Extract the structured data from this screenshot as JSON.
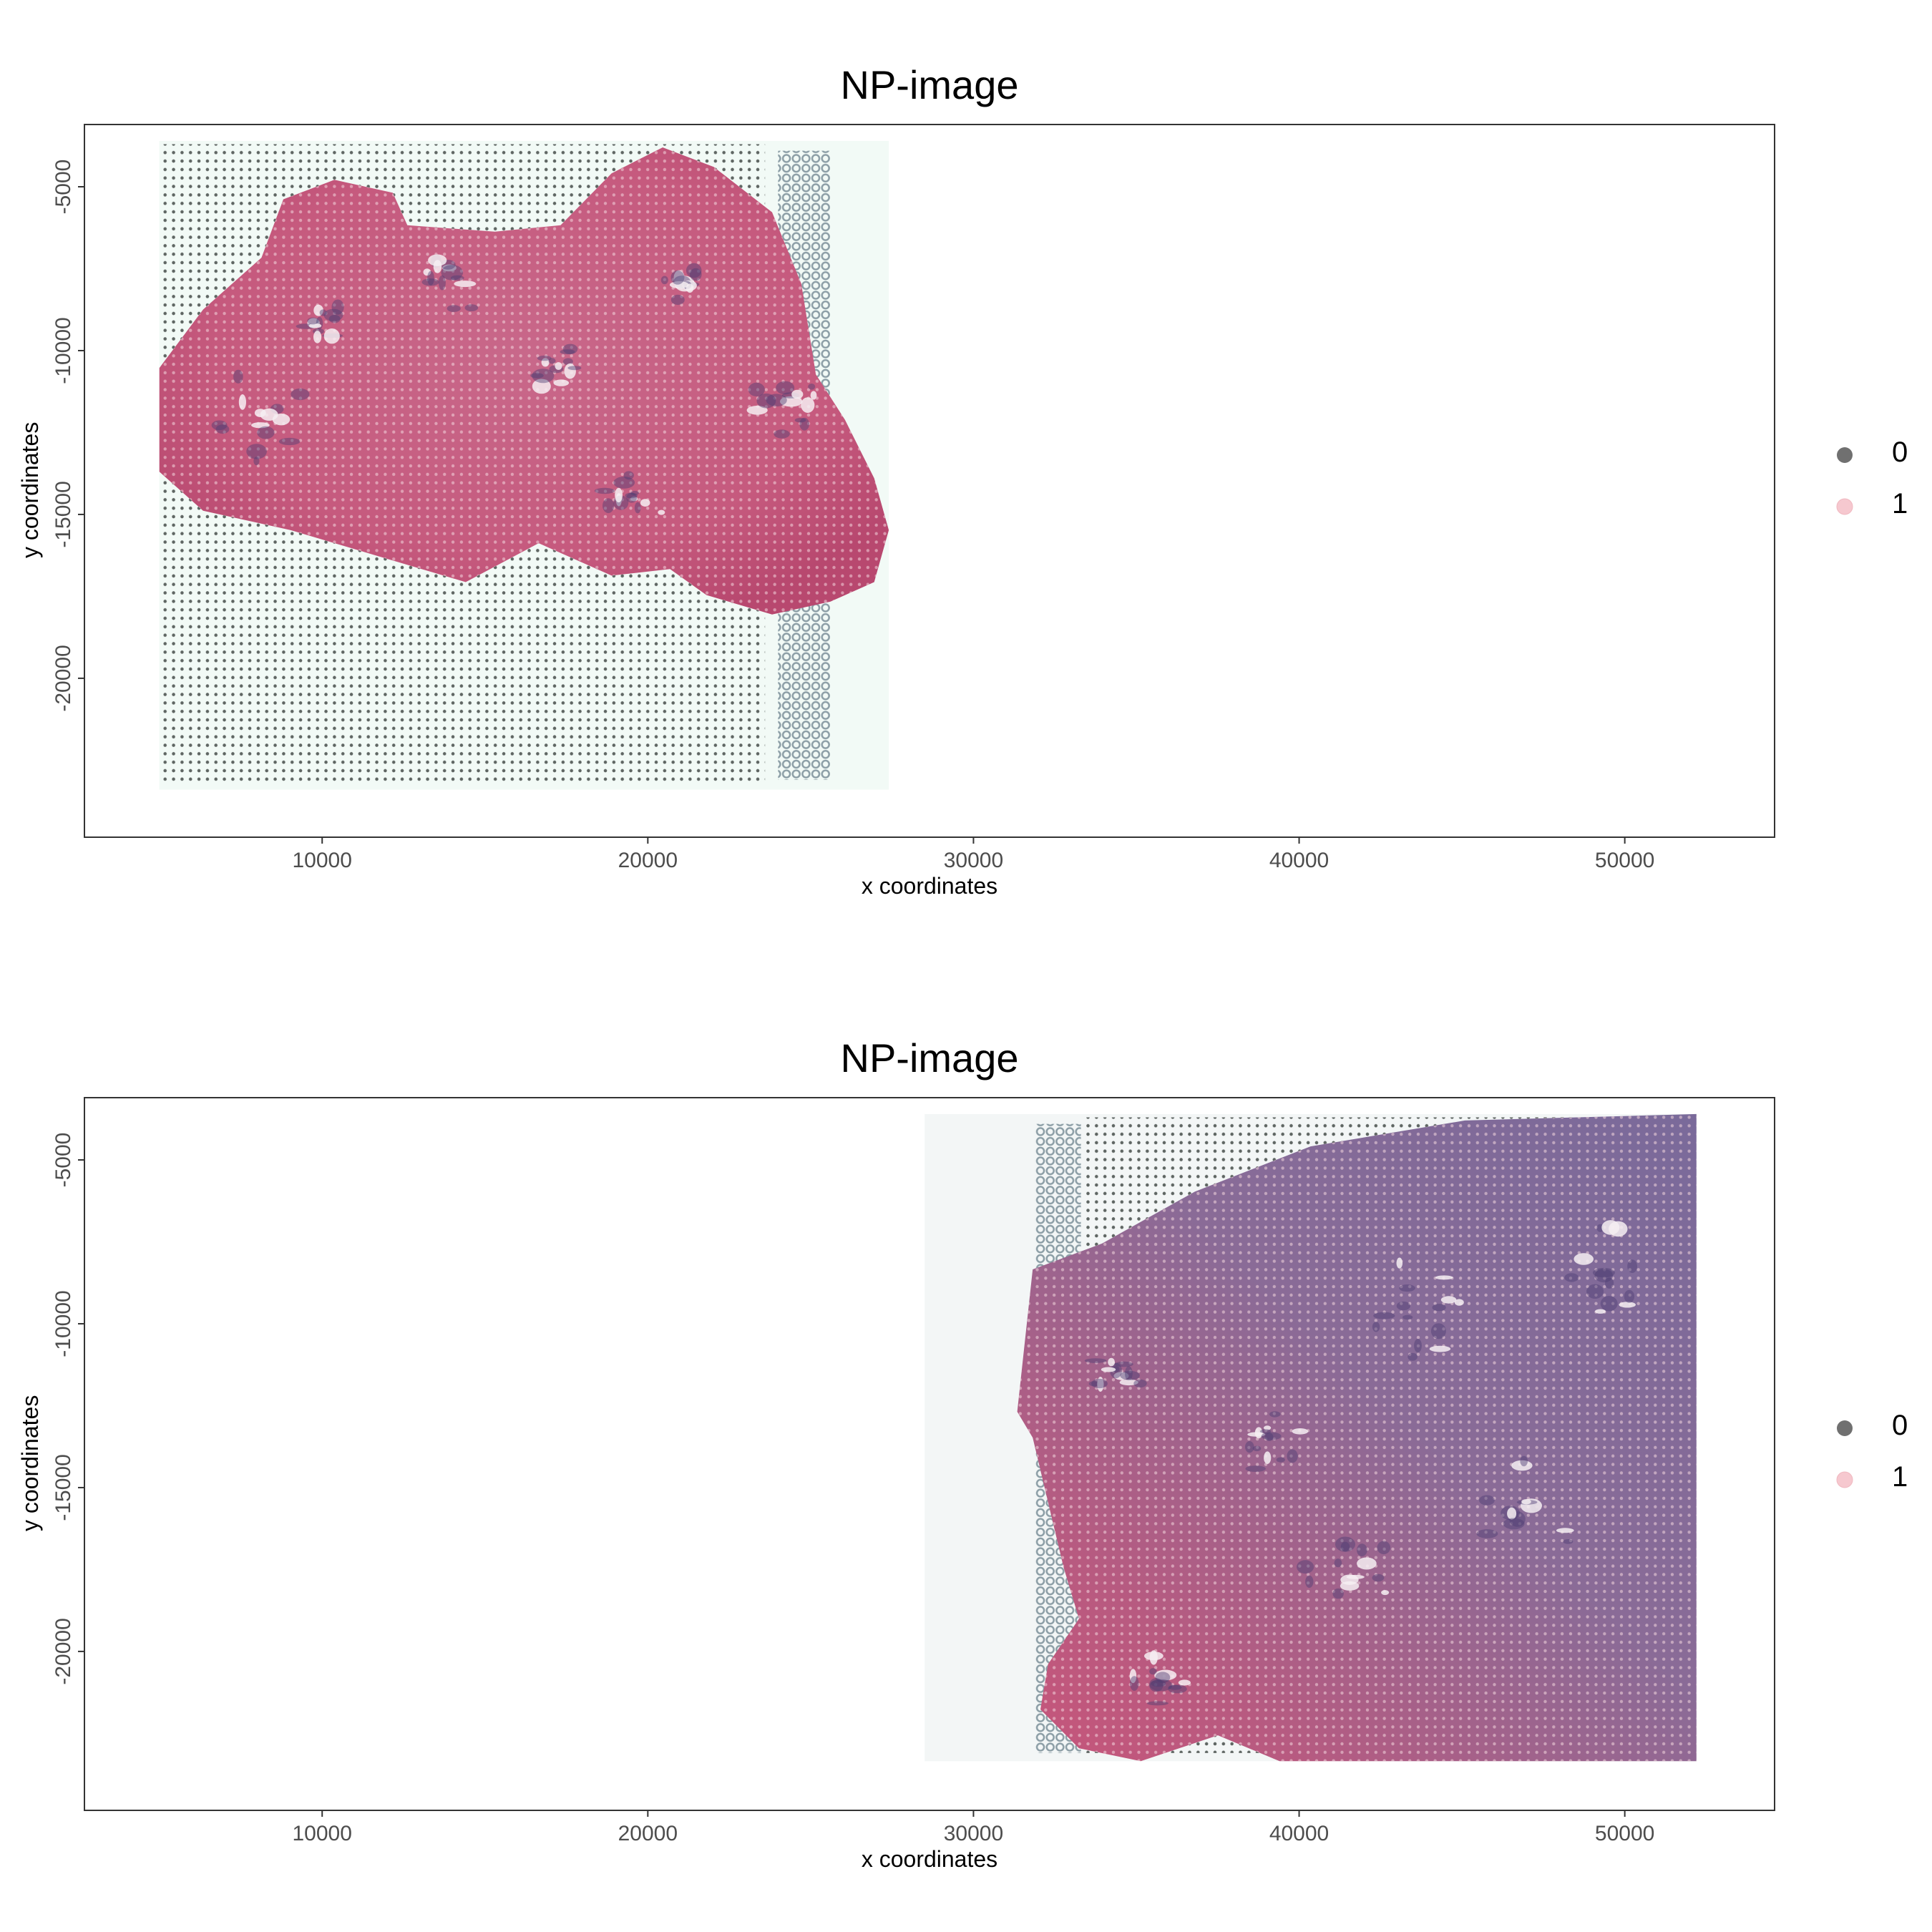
{
  "chart_data": [
    {
      "type": "scatter",
      "title": "NP-image",
      "xlabel": "x coordinates",
      "ylabel": "y coordinates",
      "xlim": [
        2700,
        54600
      ],
      "ylim": [
        -24850,
        -3100
      ],
      "x_ticks": [
        10000,
        20000,
        30000,
        40000,
        50000
      ],
      "y_ticks": [
        -5000,
        -10000,
        -15000,
        -20000
      ],
      "x_tick_labels": [
        "10000",
        "20000",
        "30000",
        "40000",
        "50000"
      ],
      "y_tick_labels": [
        "-5000",
        "-10000",
        "-15000",
        "-20000"
      ],
      "background_image": {
        "description_extent": {
          "xmin": 5000,
          "xmax": 27400,
          "ymin": -23400,
          "ymax": -3600
        }
      },
      "spot_grid": {
        "x_range": [
          5100,
          23600
        ],
        "y_range": [
          -23200,
          -3700
        ],
        "spacing": 260
      },
      "spot_fiducial_column": {
        "x_range": [
          24000,
          25600
        ],
        "y_range": [
          -23100,
          -3900
        ],
        "spacing": 300
      },
      "legend_entries": [
        "0",
        "1"
      ],
      "legend_colors": {
        "0": "#707070",
        "1": "#f6c8cf"
      },
      "grid": false
    },
    {
      "type": "scatter",
      "title": "NP-image",
      "xlabel": "x coordinates",
      "ylabel": "y coordinates",
      "xlim": [
        2700,
        54600
      ],
      "ylim": [
        -24850,
        -3100
      ],
      "x_ticks": [
        10000,
        20000,
        30000,
        40000,
        50000
      ],
      "y_ticks": [
        -5000,
        -10000,
        -15000,
        -20000
      ],
      "x_tick_labels": [
        "10000",
        "20000",
        "30000",
        "40000",
        "50000"
      ],
      "y_tick_labels": [
        "-5000",
        "-10000",
        "-15000",
        "-20000"
      ],
      "background_image": {
        "description_extent": {
          "xmin": 28500,
          "xmax": 52200,
          "ymin": -23350,
          "ymax": -3600
        }
      },
      "spot_grid": {
        "x_range": [
          33400,
          52000
        ],
        "y_range": [
          -23100,
          -3700
        ],
        "spacing": 260
      },
      "spot_fiducial_column": {
        "x_range": [
          31900,
          33300
        ],
        "y_range": [
          -23100,
          -3900
        ],
        "spacing": 300
      },
      "legend_entries": [
        "0",
        "1"
      ],
      "legend_colors": {
        "0": "#707070",
        "1": "#f6c8cf"
      },
      "grid": false
    }
  ]
}
